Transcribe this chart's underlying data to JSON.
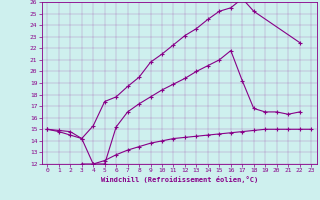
{
  "xlabel": "Windchill (Refroidissement éolien,°C)",
  "bg_color": "#cef0ee",
  "line_color": "#880088",
  "xlim": [
    -0.5,
    23.5
  ],
  "ylim": [
    12,
    26
  ],
  "xticks": [
    0,
    1,
    2,
    3,
    4,
    5,
    6,
    7,
    8,
    9,
    10,
    11,
    12,
    13,
    14,
    15,
    16,
    17,
    18,
    19,
    20,
    21,
    22,
    23
  ],
  "yticks": [
    12,
    13,
    14,
    15,
    16,
    17,
    18,
    19,
    20,
    21,
    22,
    23,
    24,
    25,
    26
  ],
  "curves": [
    {
      "x": [
        0,
        1,
        2,
        3,
        4,
        5,
        6,
        7,
        8,
        9,
        10,
        11,
        12,
        13,
        14,
        15,
        16,
        17,
        18,
        22
      ],
      "y": [
        15,
        14.8,
        14.5,
        14.2,
        15.3,
        17.4,
        17.8,
        18.7,
        19.5,
        20.8,
        21.5,
        22.3,
        23.1,
        23.7,
        24.5,
        25.2,
        25.5,
        26.3,
        25.2,
        22.5
      ]
    },
    {
      "x": [
        0,
        1,
        2,
        3,
        4,
        5,
        6,
        7,
        8,
        9,
        10,
        11,
        12,
        13,
        14,
        15,
        16,
        17,
        18,
        19,
        20,
        21,
        22
      ],
      "y": [
        15,
        14.9,
        14.8,
        14.2,
        12.0,
        12.0,
        15.2,
        16.5,
        17.2,
        17.8,
        18.4,
        18.9,
        19.4,
        20.0,
        20.5,
        21.0,
        21.8,
        19.2,
        16.8,
        16.5,
        16.5,
        16.3,
        16.5
      ]
    },
    {
      "x": [
        3,
        4,
        5,
        6,
        7,
        8,
        9,
        10,
        11,
        12,
        13,
        14,
        15,
        16,
        17,
        18,
        19,
        20,
        21,
        22,
        23
      ],
      "y": [
        12.0,
        12.0,
        12.3,
        12.8,
        13.2,
        13.5,
        13.8,
        14.0,
        14.2,
        14.3,
        14.4,
        14.5,
        14.6,
        14.7,
        14.8,
        14.9,
        15.0,
        15.0,
        15.0,
        15.0,
        15.0
      ]
    }
  ]
}
